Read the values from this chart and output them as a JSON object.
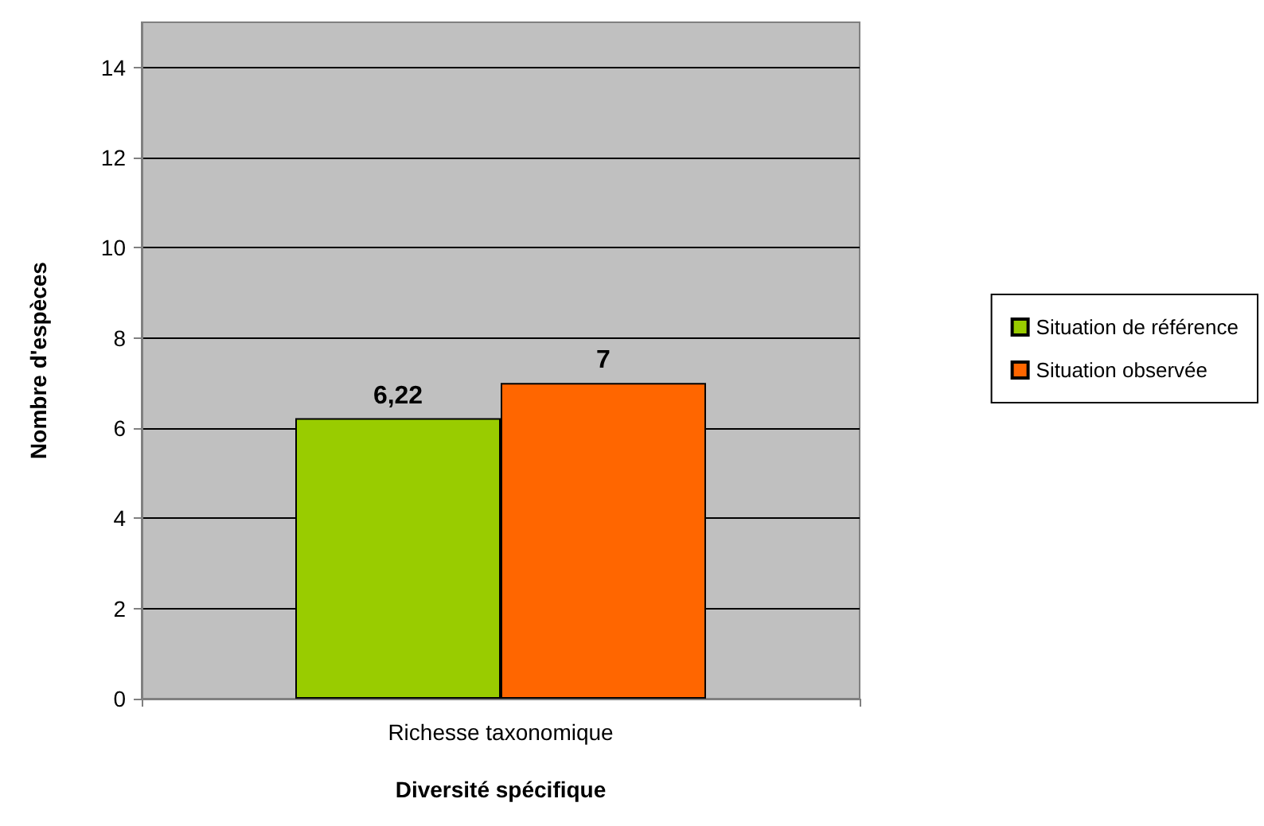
{
  "chart_data": {
    "type": "bar",
    "xlabel": "Diversité spécifique",
    "ylabel": "Nombre d'espèces",
    "categories": [
      "Richesse taxonomique"
    ],
    "series": [
      {
        "name": "Situation de référence",
        "color": "#99cc00",
        "values": [
          6.22
        ],
        "value_labels": [
          "6,22"
        ]
      },
      {
        "name": "Situation observée",
        "color": "#ff6600",
        "values": [
          7
        ],
        "value_labels": [
          "7"
        ]
      }
    ],
    "ylim": [
      0,
      15
    ],
    "yticks": [
      0,
      2,
      4,
      6,
      8,
      10,
      12,
      14
    ],
    "grid": "y",
    "legend": "right"
  }
}
